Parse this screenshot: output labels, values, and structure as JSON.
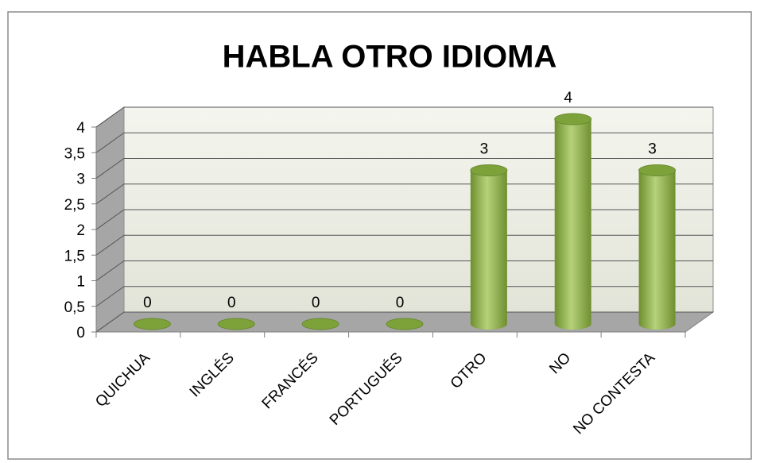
{
  "chart_data": {
    "type": "bar3d",
    "title": "HABLA OTRO IDIOMA",
    "categories": [
      "QUICHUA",
      "INGLÉS",
      "FRANCÉS",
      "PORTUGUÉS",
      "OTRO",
      "NO",
      "NO CONTESTA"
    ],
    "values": [
      0,
      0,
      0,
      0,
      3,
      4,
      3
    ],
    "color": "#9bbb59",
    "ylim": [
      0,
      4
    ],
    "yticks": [
      0,
      {
        "value": 0.5,
        "label": "0,5"
      },
      1,
      {
        "value": 1.5,
        "label": "1,5"
      },
      2,
      {
        "value": 2.5,
        "label": "2,5"
      },
      3,
      {
        "value": 3.5,
        "label": "3,5"
      },
      4
    ],
    "grid": true
  }
}
